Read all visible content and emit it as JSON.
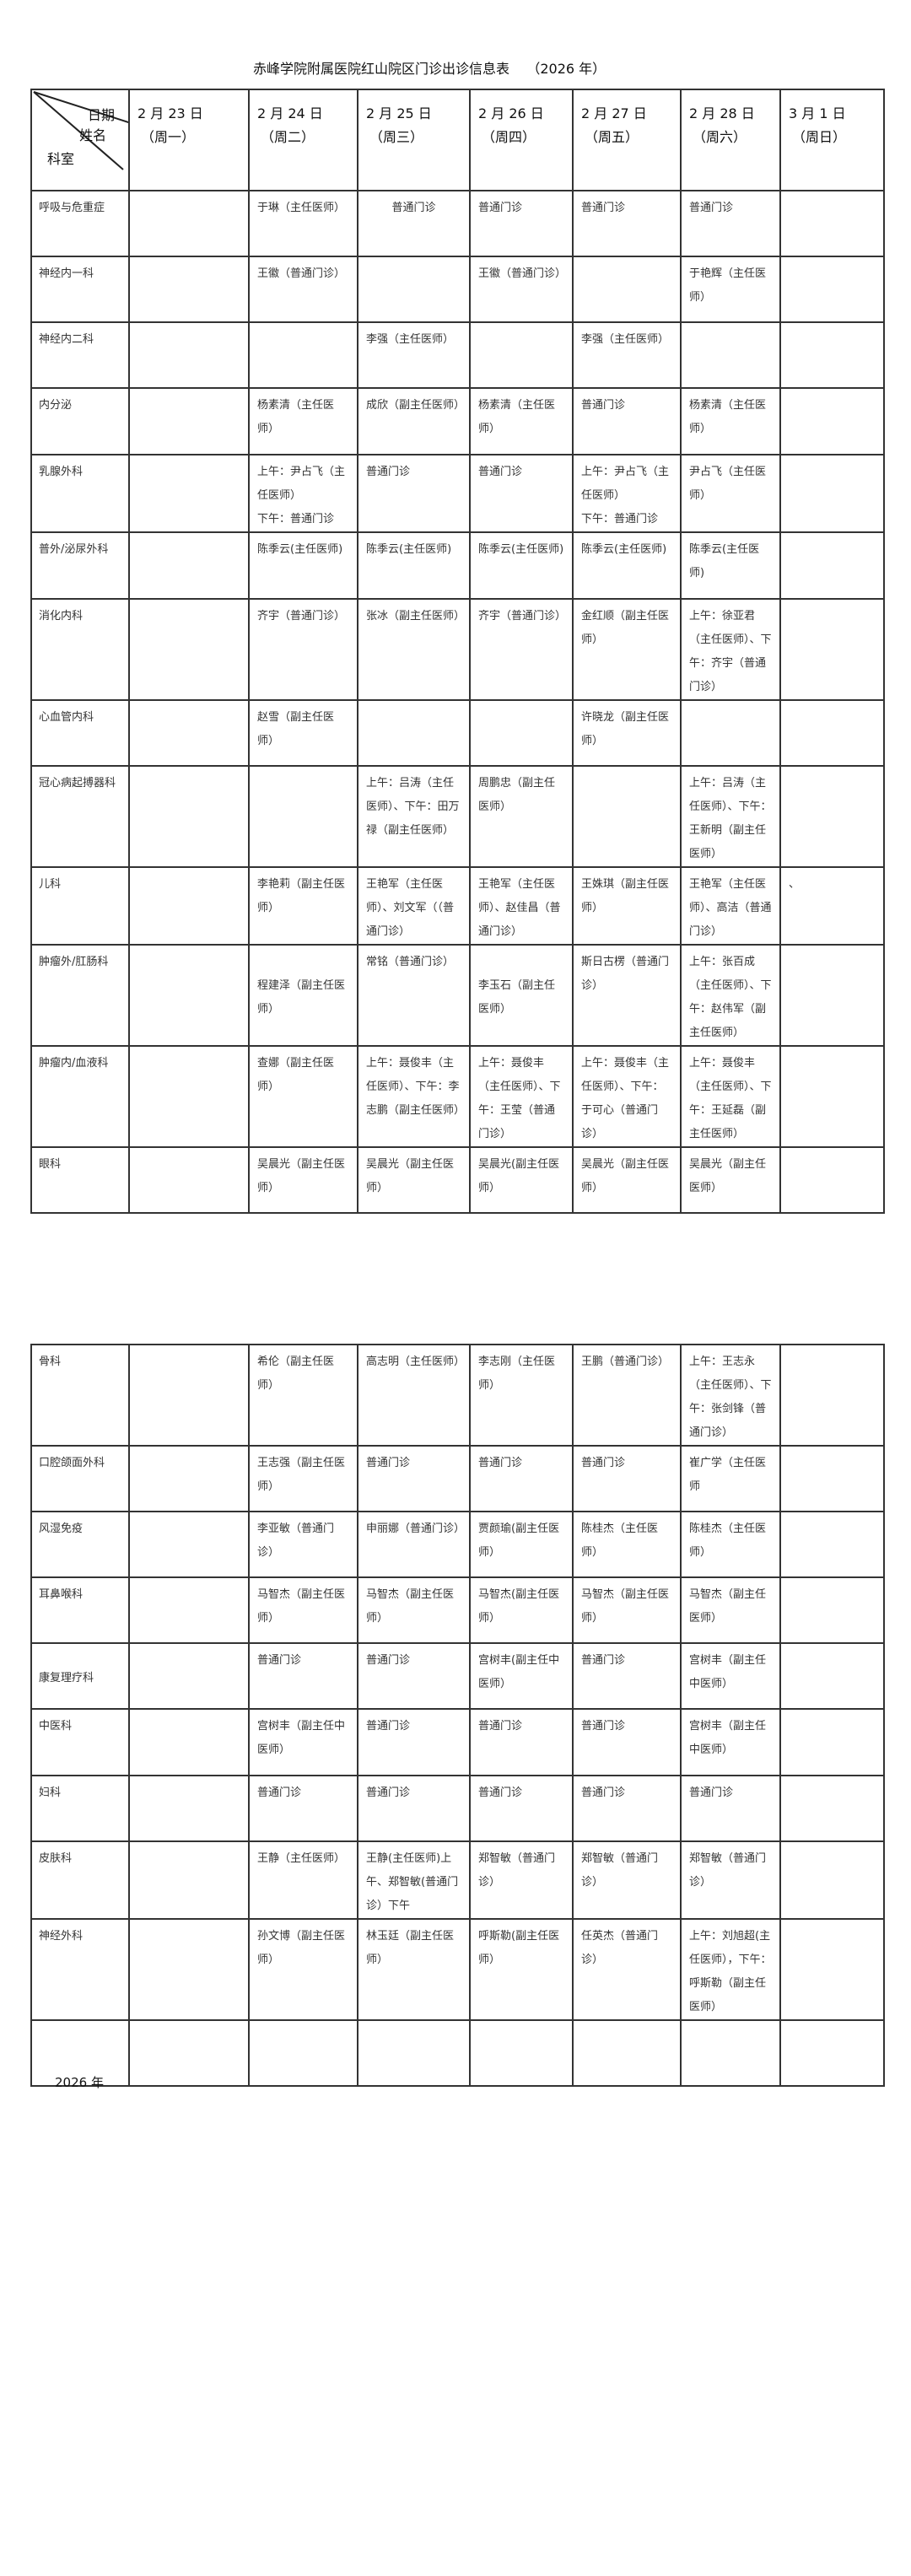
{
  "title": "赤峰学院附属医院红山院区门诊出诊信息表    （2026 年）",
  "corner": {
    "date": "日期",
    "name": "姓名",
    "dept": "科室"
  },
  "header": [
    {
      "date": "2 月 23 日",
      "weekday": "（周一）"
    },
    {
      "date": "2 月 24 日",
      "weekday": "（周二）"
    },
    {
      "date": "2 月 25 日",
      "weekday": "（周三）"
    },
    {
      "date": "2 月 26 日",
      "weekday": "（周四）"
    },
    {
      "date": "2 月 27 日",
      "weekday": "（周五）"
    },
    {
      "date": "2 月 28 日",
      "weekday": "（周六）"
    },
    {
      "date": "3 月 1 日",
      "weekday": "（周日）"
    }
  ],
  "table1": [
    {
      "dept": "呼吸与危重症",
      "cells": [
        "",
        "于琳（主任医师）",
        "普通门诊",
        "普通门诊",
        "普通门诊",
        "普通门诊",
        ""
      ]
    },
    {
      "dept": "神经内一科",
      "cells": [
        "",
        "王徽（普通门诊）",
        "",
        "王徽（普通门诊）",
        "",
        "于艳辉（主任医师）",
        ""
      ]
    },
    {
      "dept": "神经内二科",
      "cells": [
        "",
        "",
        "李强（主任医师）",
        "",
        "李强（主任医师）",
        "",
        ""
      ]
    },
    {
      "dept": "内分泌",
      "cells": [
        "",
        "杨素清（主任医师）",
        "成欣（副主任医师）",
        "杨素清（主任医师）",
        "普通门诊",
        "杨素清（主任医师）",
        ""
      ]
    },
    {
      "dept": "乳腺外科",
      "cells": [
        "",
        "上午：尹占飞（主任医师）\n下午：普通门诊",
        "普通门诊",
        "普通门诊",
        "上午：尹占飞（主任医师）\n下午：普通门诊",
        "尹占飞（主任医师）",
        ""
      ]
    },
    {
      "dept": "普外/泌尿外科",
      "cells": [
        "",
        "陈季云(主任医师)",
        "陈季云(主任医师)",
        "陈季云(主任医师)",
        "陈季云(主任医师)",
        "陈季云(主任医师)",
        ""
      ]
    },
    {
      "dept": "消化内科",
      "cells": [
        "",
        "齐宇（普通门诊）",
        "张冰（副主任医师）",
        "齐宇（普通门诊）",
        "金红顺（副主任医师）",
        "上午：徐亚君（主任医师）、下午：齐宇（普通门诊）",
        ""
      ]
    },
    {
      "dept": "心血管内科",
      "cells": [
        "",
        "赵雪（副主任医师）",
        "",
        "",
        "许晓龙（副主任医师）",
        "",
        ""
      ]
    },
    {
      "dept": "冠心病起搏器科",
      "cells": [
        "",
        "",
        "上午：吕涛（主任医师）、下午：田万禄（副主任医师）",
        "周鹏忠（副主任医师）",
        "",
        "上午：吕涛（主任医师）、下午：王新明（副主任医师）",
        ""
      ]
    },
    {
      "dept": "儿科",
      "cells": [
        "",
        "李艳莉（副主任医师）",
        "王艳军（主任医师）、刘文军（（普通门诊）",
        "王艳军（主任医师）、赵佳昌（普通门诊）",
        "王姝琪（副主任医师）",
        "王艳军（主任医师）、高洁（普通门诊）",
        "、"
      ]
    },
    {
      "dept": "肿瘤外/肛肠科",
      "cells": [
        "",
        "\n程建泽（副主任医师）",
        "常铭（普通门诊）",
        "\n李玉石（副主任医师）",
        "斯日古楞（普通门诊）",
        "上午：张百成（主任医师）、下午：赵伟军（副主任医师）",
        ""
      ]
    },
    {
      "dept": "肿瘤内/血液科",
      "cells": [
        "",
        "查娜（副主任医师）",
        "上午：聂俊丰（主任医师）、下午：李志鹏（副主任医师）",
        "上午：聂俊丰（主任医师）、下午：王莹（普通门诊）",
        "上午：聂俊丰（主任医师）、下午：于可心（普通门诊）",
        "上午：聂俊丰（主任医师）、下午：王延磊（副主任医师）",
        ""
      ]
    },
    {
      "dept": "眼科",
      "cells": [
        "",
        "吴晨光（副主任医师）",
        "吴晨光（副主任医师）",
        "吴晨光(副主任医师）",
        "吴晨光（副主任医师）",
        "吴晨光（副主任医师）",
        ""
      ]
    }
  ],
  "table2": [
    {
      "dept": "骨科",
      "cells": [
        "",
        "希伦（副主任医师）",
        "高志明（主任医师）",
        "李志刚（主任医师）",
        "王鹏（普通门诊）",
        "上午：王志永（主任医师）、下午：张剑锋（普通门诊）",
        ""
      ]
    },
    {
      "dept": "口腔颌面外科",
      "cells": [
        "",
        "王志强（副主任医师）",
        "普通门诊",
        "普通门诊",
        "普通门诊",
        "崔广学（主任医师",
        ""
      ]
    },
    {
      "dept": "风湿免疫",
      "cells": [
        "",
        "李亚敏（普通门诊）",
        "申丽娜（普通门诊）",
        "贾颜瑜(副主任医师）",
        "陈桂杰（主任医师）",
        "陈桂杰（主任医师）",
        ""
      ]
    },
    {
      "dept": "耳鼻喉科",
      "cells": [
        "",
        "马智杰（副主任医师）",
        "马智杰（副主任医师）",
        "马智杰(副主任医师）",
        "马智杰（副主任医师）",
        "马智杰（副主任医师）",
        ""
      ]
    },
    {
      "dept": "康复理疗科",
      "cells": [
        "",
        "普通门诊",
        "普通门诊",
        "宫树丰(副主任中医师）",
        "普通门诊",
        "宫树丰（副主任中医师）",
        ""
      ]
    },
    {
      "dept": "中医科",
      "cells": [
        "",
        "宫树丰（副主任中医师）",
        "普通门诊",
        "普通门诊",
        "普通门诊",
        "宫树丰（副主任中医师）",
        ""
      ]
    },
    {
      "dept": "妇科",
      "cells": [
        "",
        "普通门诊",
        "普通门诊",
        "普通门诊",
        "普通门诊",
        "普通门诊",
        ""
      ]
    },
    {
      "dept": "皮肤科",
      "cells": [
        "",
        "王静（主任医师）",
        "王静(主任医师)上午、郑智敏(普通门诊）下午",
        "郑智敏（普通门诊）",
        "郑智敏（普通门诊）",
        "郑智敏（普通门诊）",
        ""
      ]
    },
    {
      "dept": "神经外科",
      "cells": [
        "",
        "孙文博（副主任医师）",
        "林玉廷（副主任医师）",
        "呼斯勒(副主任医师）",
        "任英杰（普通门诊）",
        "上午：刘旭超(主任医师），下午：呼斯勒（副主任医师）",
        ""
      ]
    },
    {
      "dept": "",
      "cells": [
        "",
        "",
        "",
        "",
        "",
        "",
        ""
      ]
    }
  ],
  "footer": "2026 年"
}
